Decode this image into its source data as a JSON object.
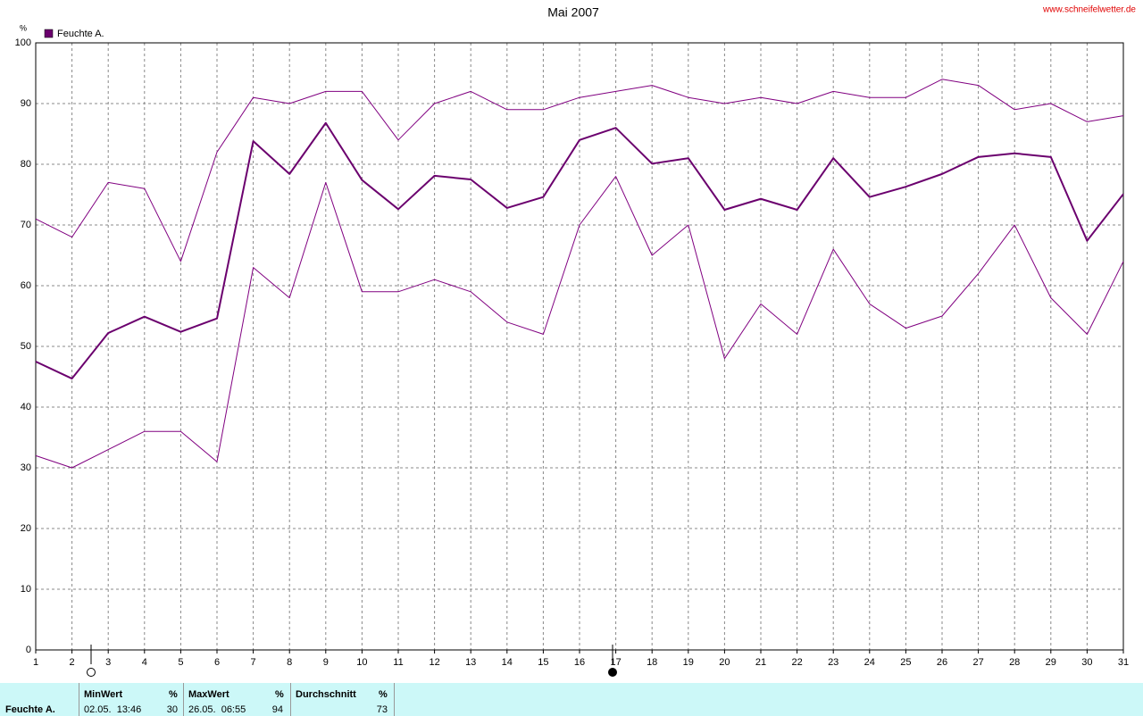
{
  "chart_data": {
    "type": "line",
    "title": "Mai 2007",
    "source": "www.schneifelwetter.de",
    "y_label": "%",
    "x": [
      1,
      2,
      3,
      4,
      5,
      6,
      7,
      8,
      9,
      10,
      11,
      12,
      13,
      14,
      15,
      16,
      17,
      18,
      19,
      20,
      21,
      22,
      23,
      24,
      25,
      26,
      27,
      28,
      29,
      30,
      31
    ],
    "xlim": [
      1,
      31
    ],
    "xticks": [
      1,
      2,
      3,
      4,
      5,
      6,
      7,
      8,
      9,
      10,
      11,
      12,
      13,
      14,
      15,
      16,
      17,
      18,
      19,
      20,
      21,
      22,
      23,
      24,
      25,
      26,
      27,
      28,
      29,
      30,
      31
    ],
    "ylim": [
      0,
      100
    ],
    "yticks": [
      0,
      10,
      20,
      30,
      40,
      50,
      60,
      70,
      80,
      90,
      100
    ],
    "grid": true,
    "legend": "top-left",
    "series": [
      {
        "name": "Feuchte A.",
        "color": "#6b006e",
        "linewidth": 2,
        "values": [
          47.5,
          44.7,
          52.2,
          54.9,
          52.4,
          54.6,
          83.8,
          78.4,
          86.8,
          77.4,
          72.6,
          78.1,
          77.5,
          72.8,
          74.6,
          84,
          86,
          80.1,
          81,
          72.5,
          74.3,
          72.5,
          81,
          74.6,
          76.3,
          78.4,
          81.2,
          81.8,
          81.2,
          67.4,
          75.1
        ]
      },
      {
        "color": "#800080",
        "linewidth": 1,
        "values": [
          71,
          68,
          77,
          76,
          64,
          82,
          91,
          90,
          92,
          92,
          84,
          90,
          92,
          89,
          89,
          91,
          92,
          93,
          91,
          90,
          91,
          90,
          92,
          91,
          91,
          94,
          93,
          89,
          90,
          87,
          88
        ]
      },
      {
        "color": "#800080",
        "linewidth": 1,
        "values": [
          32,
          30,
          33,
          36,
          36,
          31,
          63,
          58,
          77,
          59,
          59,
          61,
          59,
          54,
          52,
          70,
          78,
          65,
          70,
          48,
          57,
          52,
          66,
          57,
          53,
          55,
          62,
          70,
          58,
          52,
          64
        ]
      }
    ]
  },
  "summary": {
    "row_label": "Feuchte A.",
    "columns": [
      {
        "header": "MinWert",
        "unit": "%",
        "time": "02.05.  13:46",
        "value": "30"
      },
      {
        "header": "MaxWert",
        "unit": "%",
        "time": "26.05.  06:55",
        "value": "94"
      },
      {
        "header": "Durchschnitt",
        "unit": "%",
        "value": "73"
      }
    ]
  }
}
